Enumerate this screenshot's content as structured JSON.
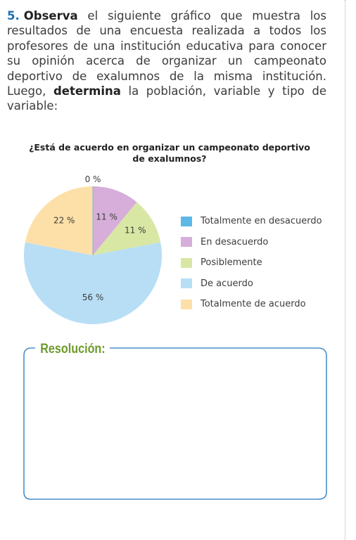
{
  "exercise": {
    "number": "5.",
    "lead_bold": "Observa",
    "text_1": " el siguiente gráfico que muestra los resultados de una encuesta realizada a todos los profesores de una institución educativa para conocer su opinión acerca de organizar un campeonato deportivo de exalumnos de la misma institución. Luego, ",
    "mid_bold": "determina",
    "text_2": " la población, variable y tipo de variable:"
  },
  "chart_data": {
    "type": "pie",
    "title": "¿Está de acuerdo en organizar un campeonato deportivo de exalumnos?",
    "categories": [
      "Totalmente en desacuerdo",
      "En desacuerdo",
      "Posiblemente",
      "De acuerdo",
      "Totalmente de acuerdo"
    ],
    "values": [
      0,
      11,
      11,
      56,
      22
    ],
    "value_labels": [
      "0 %",
      "11 %",
      "11 %",
      "56 %",
      "22 %"
    ],
    "colors": [
      "#5cb8e6",
      "#d6aed9",
      "#d9e7a5",
      "#b8def5",
      "#fde0a8"
    ],
    "legend_position": "right"
  },
  "resolution": {
    "label": "Resolución:"
  }
}
